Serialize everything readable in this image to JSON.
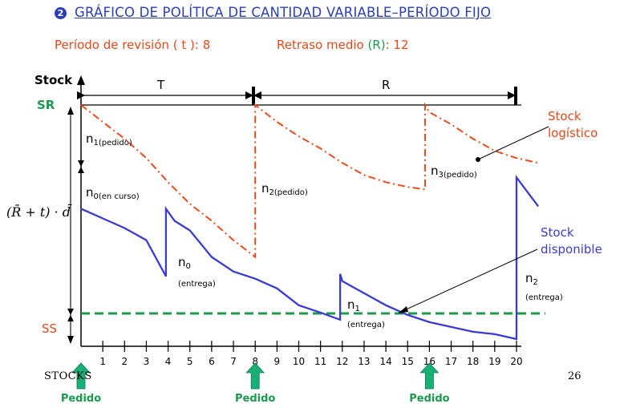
{
  "title": {
    "number": "2",
    "text": "GRÁFICO DE POLÍTICA DE CANTIDAD VARIABLE–PERÍODO FIJO"
  },
  "params": {
    "review_label": "Período de revisión ( t ): 8",
    "delay_label_pre": "Retraso medio ",
    "delay_label_var": "(R)",
    "delay_label_post": ": 12"
  },
  "axes": {
    "y_label": "Stock",
    "sr_label": "SR",
    "ss_label": "SS",
    "formula": "(R̄ + t) · d̄"
  },
  "braces": {
    "T": "T",
    "R": "R"
  },
  "labels": {
    "n1": "n",
    "n1_sub": "1(pedido)",
    "n0_curso": "n",
    "n0_curso_sub": "0(en curso)",
    "n2_pedido": "n",
    "n2_pedido_sub": "2(pedido)",
    "n3_pedido": "n",
    "n3_pedido_sub": "3(pedido)",
    "n0_entrega": "n",
    "n0_entrega_sub": "0",
    "n0_entrega_note": "(entrega)",
    "n1_entrega": "n",
    "n1_entrega_sub": "1",
    "n1_entrega_note": "(entrega)",
    "n2_entrega": "n",
    "n2_entrega_sub": "2",
    "n2_entrega_note": "(entrega)",
    "stock_logistico_1": "Stock",
    "stock_logistico_2": "logístico",
    "stock_disponible_1": "Stock",
    "stock_disponible_2": "disponible"
  },
  "x_ticks": [
    "1",
    "2",
    "3",
    "4",
    "5",
    "6",
    "7",
    "8",
    "9",
    "10",
    "11",
    "12",
    "13",
    "14",
    "15",
    "16",
    "17",
    "18",
    "19",
    "20"
  ],
  "orders": [
    {
      "period": 0,
      "label": "Pedido"
    },
    {
      "period": 8,
      "label": "Pedido"
    },
    {
      "period": 16,
      "label": "Pedido"
    }
  ],
  "footer": {
    "left": "STOCKS",
    "page": "26"
  },
  "colors": {
    "available": "#3a3ad6",
    "logistic": "#f04a1a",
    "ss_line": "#1f9a4a",
    "title": "#2b3fb5",
    "order_arrow": "#19b078",
    "sr_ss": "#1b9a4e",
    "annot": "#e8471a"
  },
  "chart_data": {
    "type": "line",
    "x_unit": "período",
    "xlim": [
      0,
      21
    ],
    "review_period": 8,
    "mean_delay": 12,
    "series": [
      {
        "name": "Stock logístico",
        "style": "dash-dot",
        "points": [
          [
            0,
            100
          ],
          [
            1,
            93
          ],
          [
            2,
            86
          ],
          [
            3,
            78
          ],
          [
            4,
            68
          ],
          [
            5,
            59
          ],
          [
            6,
            52
          ],
          [
            7,
            44
          ],
          [
            8,
            37
          ],
          [
            8,
            100
          ],
          [
            9,
            93
          ],
          [
            10,
            87
          ],
          [
            11,
            82
          ],
          [
            12,
            76
          ],
          [
            13,
            71
          ],
          [
            14,
            68
          ],
          [
            15,
            66
          ],
          [
            15.8,
            65
          ],
          [
            15.8,
            100
          ],
          [
            16,
            97
          ],
          [
            17,
            92
          ],
          [
            18,
            86
          ],
          [
            19,
            81
          ],
          [
            20,
            78
          ],
          [
            21,
            76
          ]
        ]
      },
      {
        "name": "Stock disponible",
        "style": "solid",
        "points": [
          [
            0,
            57
          ],
          [
            1,
            53
          ],
          [
            2,
            49
          ],
          [
            3,
            44
          ],
          [
            3.9,
            29
          ],
          [
            3.9,
            57
          ],
          [
            4.3,
            52
          ],
          [
            5,
            48
          ],
          [
            6,
            37
          ],
          [
            7,
            31
          ],
          [
            8,
            28
          ],
          [
            9,
            24
          ],
          [
            10,
            17
          ],
          [
            11,
            14
          ],
          [
            11.9,
            11
          ],
          [
            11.9,
            30
          ],
          [
            12,
            27
          ],
          [
            13,
            22
          ],
          [
            14,
            17
          ],
          [
            15,
            13
          ],
          [
            16,
            10
          ],
          [
            17,
            8
          ],
          [
            18,
            6
          ],
          [
            19,
            5
          ],
          [
            20,
            3
          ],
          [
            20,
            70
          ],
          [
            21,
            58
          ]
        ]
      }
    ]
  }
}
